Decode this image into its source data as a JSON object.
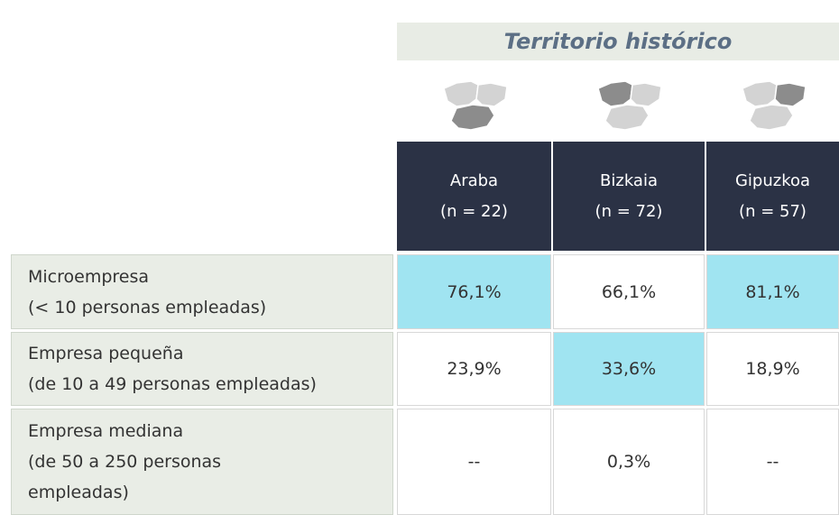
{
  "header": {
    "title": "Territorio histórico"
  },
  "columns": [
    {
      "name": "Araba",
      "n": "(n = 22)"
    },
    {
      "name": "Bizkaia",
      "n": "(n = 72)"
    },
    {
      "name": "Gipuzkoa",
      "n": "(n = 57)"
    }
  ],
  "rows": [
    {
      "label": [
        "Microempresa",
        "(< 10 personas  empleadas)"
      ],
      "cells": [
        {
          "text": "76,1%",
          "highlight": true
        },
        {
          "text": "66,1%",
          "highlight": false
        },
        {
          "text": "81,1%",
          "highlight": true
        }
      ]
    },
    {
      "label": [
        "Empresa pequeña",
        "(de 10 a 49 personas empleadas)"
      ],
      "cells": [
        {
          "text": "23,9%",
          "highlight": false
        },
        {
          "text": "33,6%",
          "highlight": true
        },
        {
          "text": "18,9%",
          "highlight": false
        }
      ]
    },
    {
      "label": [
        "Empresa mediana",
        "(de 50 a 250 personas",
        "empleadas)"
      ],
      "cells": [
        {
          "text": "--",
          "highlight": false
        },
        {
          "text": "0,3%",
          "highlight": false
        },
        {
          "text": "--",
          "highlight": false
        }
      ]
    }
  ]
}
